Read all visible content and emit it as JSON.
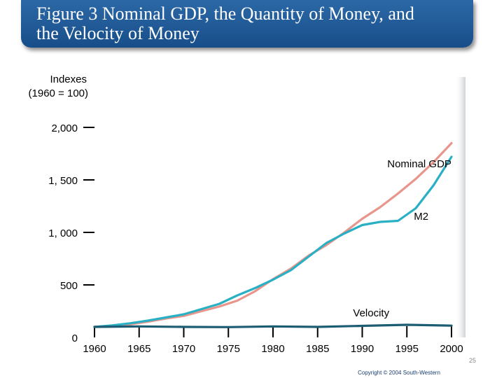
{
  "slide": {
    "title": "Figure 3 Nominal GDP, the Quantity of Money, and\nthe Velocity of Money",
    "page_number": "25",
    "copyright": "Copyright © 2004 South-Western"
  },
  "colors": {
    "nominal_gdp": "#e8958c",
    "m2": "#29b0c4",
    "velocity": "#1d5d73",
    "title_bg": "#1f5a97"
  },
  "chart_data": {
    "type": "line",
    "ylabel": [
      "Indexes",
      "(1960 = 100)"
    ],
    "xlim": [
      1960,
      2000
    ],
    "ylim": [
      0,
      2000
    ],
    "x_ticks": [
      "1960",
      "1965",
      "1970",
      "1975",
      "1980",
      "1985",
      "1990",
      "1995",
      "2000"
    ],
    "y_ticks": [
      "2,000",
      "1, 500",
      "1, 000",
      "500",
      "0"
    ],
    "series": [
      {
        "name": "Nominal GDP",
        "color": "#e8958c",
        "x": [
          1960,
          1962,
          1964,
          1966,
          1968,
          1970,
          1972,
          1974,
          1976,
          1978,
          1980,
          1982,
          1984,
          1986,
          1988,
          1990,
          1992,
          1994,
          1996,
          1998,
          2000
        ],
        "values": [
          100,
          110,
          125,
          150,
          180,
          205,
          250,
          295,
          350,
          440,
          555,
          655,
          780,
          880,
          1000,
          1130,
          1240,
          1370,
          1510,
          1670,
          1850
        ]
      },
      {
        "name": "M2",
        "color": "#29b0c4",
        "x": [
          1960,
          1962,
          1964,
          1966,
          1968,
          1970,
          1972,
          1974,
          1976,
          1978,
          1980,
          1982,
          1984,
          1986,
          1988,
          1990,
          1992,
          1994,
          1996,
          1998,
          2000
        ],
        "values": [
          100,
          115,
          135,
          160,
          190,
          220,
          270,
          320,
          400,
          470,
          550,
          640,
          770,
          900,
          990,
          1070,
          1100,
          1110,
          1230,
          1450,
          1720
        ]
      },
      {
        "name": "Velocity",
        "color": "#1d5d73",
        "x": [
          1960,
          1965,
          1970,
          1975,
          1980,
          1985,
          1990,
          1995,
          2000
        ],
        "values": [
          100,
          105,
          100,
          98,
          105,
          100,
          110,
          120,
          112
        ]
      }
    ]
  }
}
